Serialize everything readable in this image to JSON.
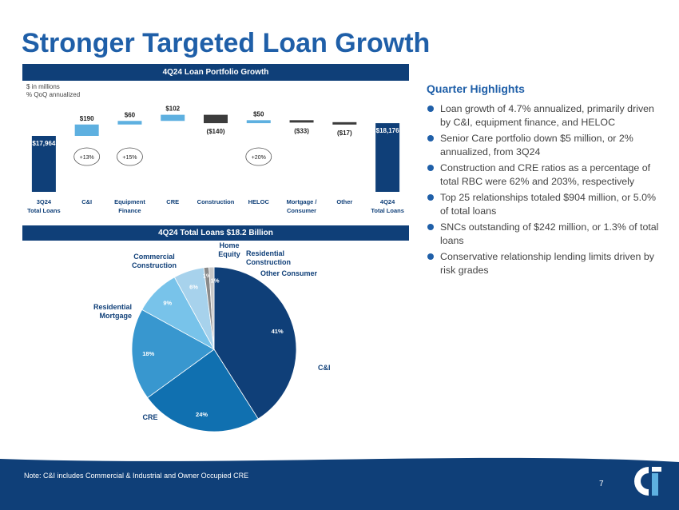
{
  "page": {
    "title": "Stronger Targeted Loan Growth",
    "footnote": "Note: C&I includes Commercial & Industrial and Owner Occupied CRE",
    "page_number": "7"
  },
  "highlights": {
    "title": "Quarter Highlights",
    "items": [
      "Loan growth of 4.7% annualized, primarily driven by C&I, equipment finance, and HELOC",
      "Senior Care portfolio down $5 million, or 2% annualized, from 3Q24",
      "Construction and CRE ratios as a percentage of total RBC were 62% and 203%, respectively",
      "Top 25 relationships totaled $904 million, or 5.0% of total loans",
      "SNCs outstanding of $242 million, or 1.3% of total loans",
      "Conservative relationship lending limits driven by risk grades"
    ]
  },
  "colors": {
    "navy": "#0f3f78",
    "light_blue": "#5eb0e0",
    "dark_gray": "#3c3c3c",
    "title_blue": "#1f5fa8",
    "pie": [
      "#0f3f78",
      "#1070b0",
      "#3897cf",
      "#78c3ea",
      "#a7d2ec",
      "#8a8a8a",
      "#c8c8c8"
    ]
  },
  "chart_data": [
    {
      "type": "bar",
      "subtype": "waterfall",
      "title": "4Q24 Loan Portfolio Growth",
      "units_note": "$ in millions",
      "growth_note": "% QoQ annualized",
      "categories": [
        "3Q24 Total Loans",
        "C&I",
        "Equipment Finance",
        "CRE",
        "Construction",
        "HELOC",
        "Mortgage / Consumer",
        "Other",
        "4Q24 Total Loans"
      ],
      "category_lines": [
        [
          "3Q24",
          "Total Loans"
        ],
        [
          "C&I"
        ],
        [
          "Equipment",
          "Finance"
        ],
        [
          "CRE"
        ],
        [
          "Construction"
        ],
        [
          "HELOC"
        ],
        [
          "Mortgage /",
          "Consumer"
        ],
        [
          "Other"
        ],
        [
          "4Q24",
          "Total Loans"
        ]
      ],
      "kinds": [
        "total",
        "delta",
        "delta",
        "delta",
        "delta",
        "delta",
        "delta",
        "delta",
        "total"
      ],
      "values": [
        17964,
        190,
        60,
        102,
        -140,
        50,
        -33,
        -17,
        18176
      ],
      "labels": [
        "$17,964",
        "$190",
        "$60",
        "$102",
        "($140)",
        "$50",
        "($33)",
        "($17)",
        "$18,176"
      ],
      "growth_badges": [
        null,
        "+13%",
        "+15%",
        null,
        null,
        "+20%",
        null,
        null,
        null
      ],
      "legend": "none",
      "grid": false
    },
    {
      "type": "pie",
      "title": "4Q24 Total Loans $18.2 Billion",
      "slices": [
        {
          "name": "C&I",
          "value": 41,
          "label": "41%"
        },
        {
          "name": "CRE",
          "value": 24,
          "label": "24%"
        },
        {
          "name": "Residential Mortgage",
          "label_lines": [
            "Residential",
            "Mortgage"
          ],
          "value": 18,
          "label": "18%"
        },
        {
          "name": "Commercial Construction",
          "label_lines": [
            "Commercial",
            "Construction"
          ],
          "value": 9,
          "label": "9%"
        },
        {
          "name": "Home Equity",
          "label_lines": [
            "Home",
            "Equity"
          ],
          "value": 6,
          "label": "6%"
        },
        {
          "name": "Residential Construction",
          "label_lines": [
            "Residential",
            "Construction"
          ],
          "value": 1,
          "label": "1%"
        },
        {
          "name": "Other Consumer",
          "label_lines": [
            "Other Consumer"
          ],
          "value": 1,
          "label": "1%"
        }
      ],
      "legend": "none"
    }
  ]
}
